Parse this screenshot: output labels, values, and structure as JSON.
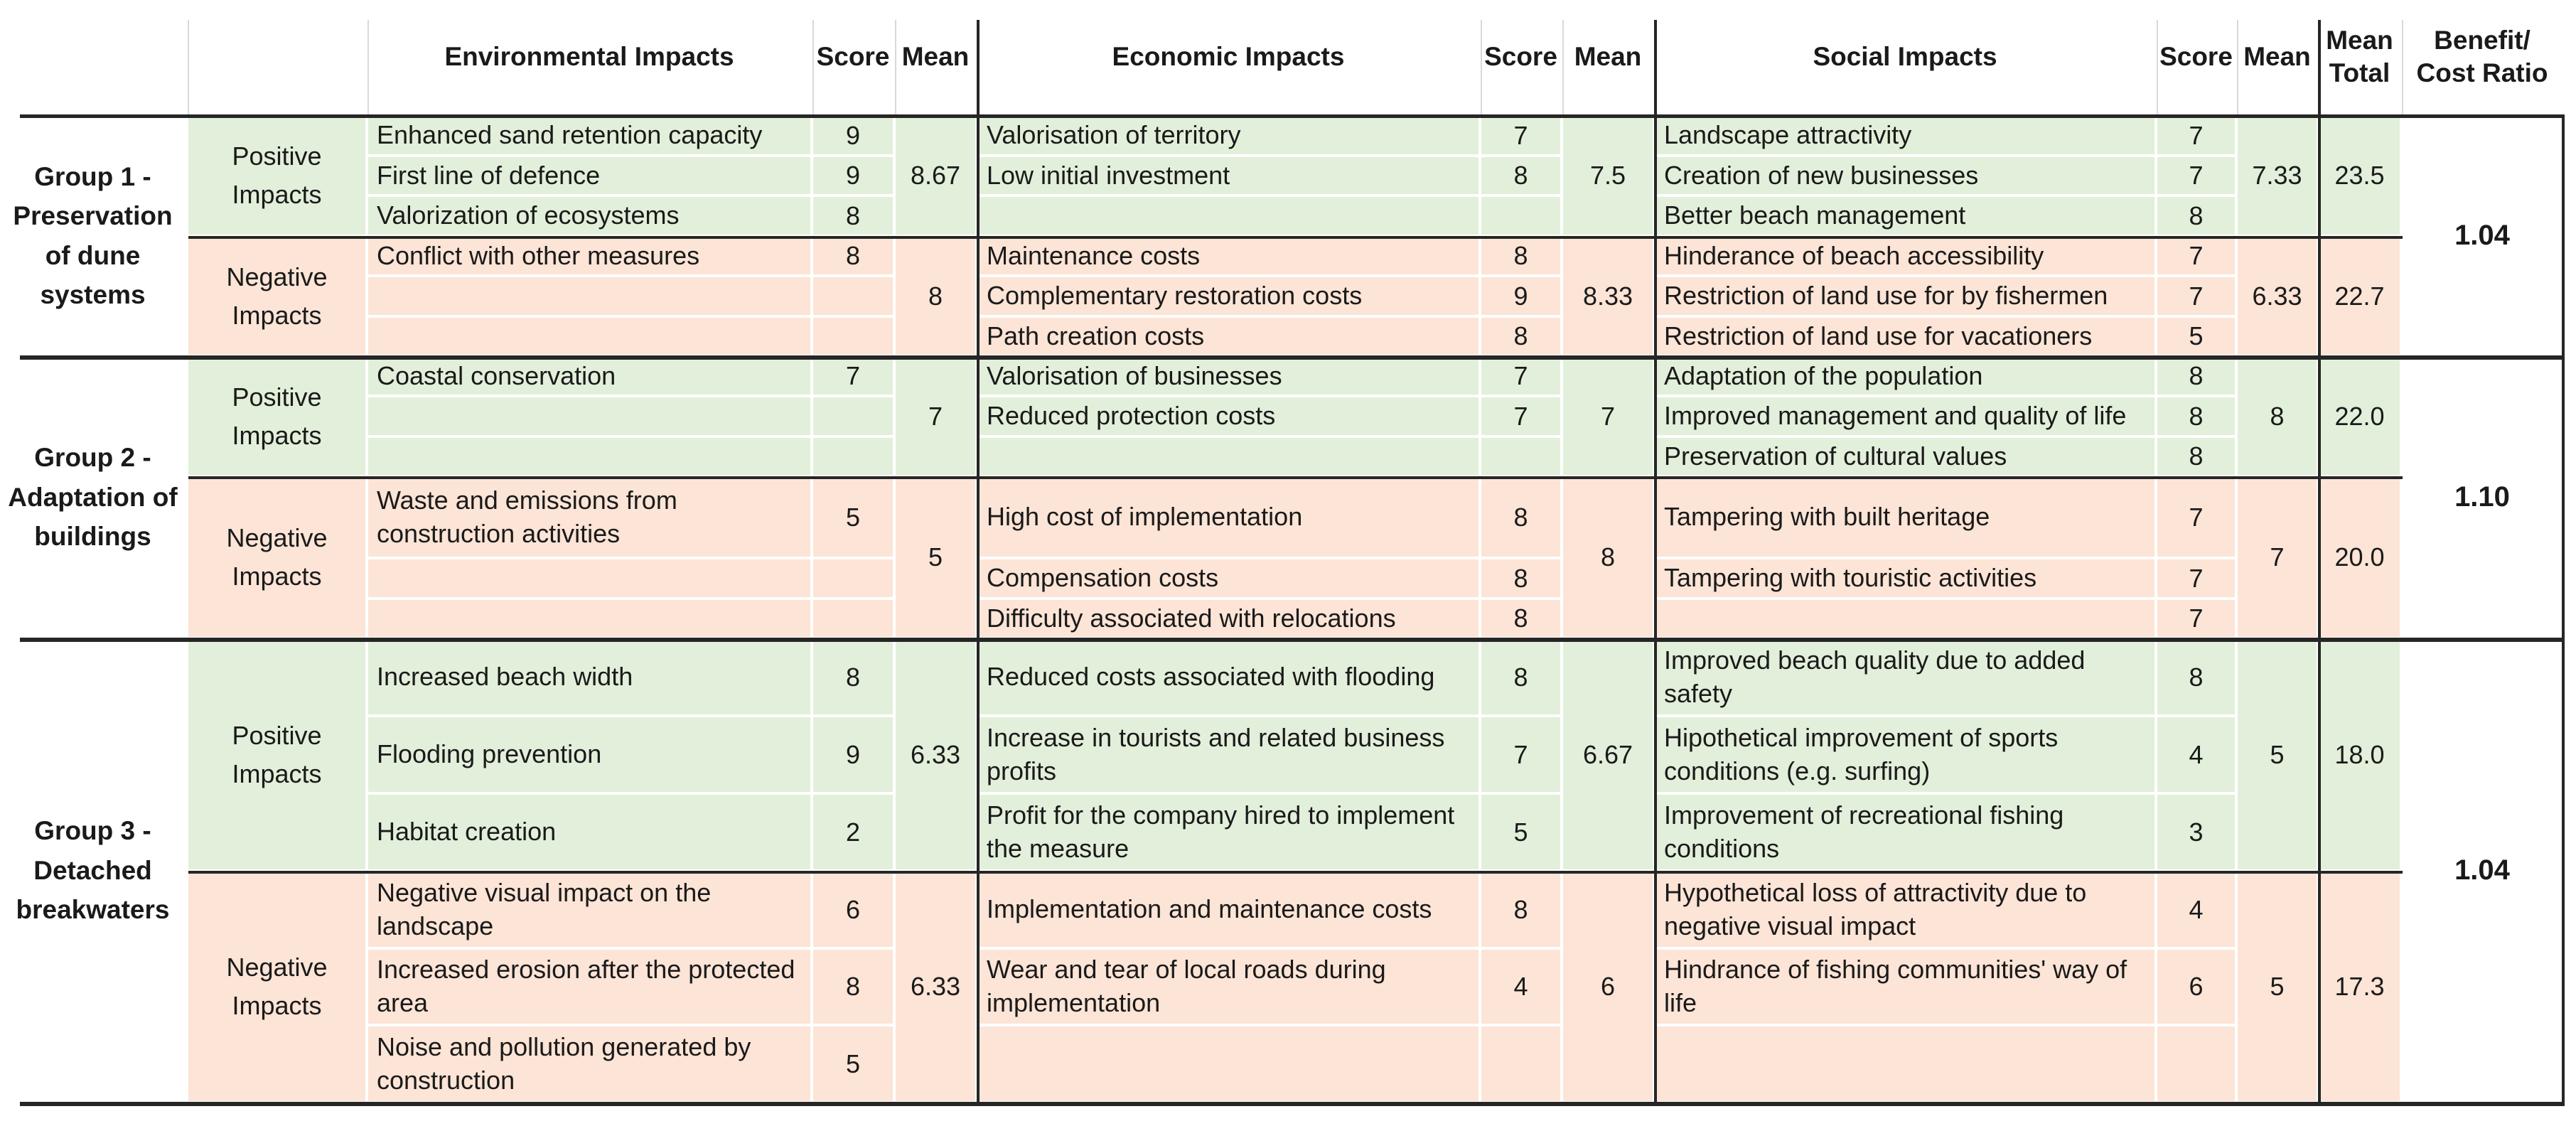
{
  "colors": {
    "positive_fill": "#e2efda",
    "negative_fill": "#fce4d6",
    "grid_dark": "#262626",
    "grid_light": "#d9d9d9"
  },
  "header": {
    "environmental": "Environmental Impacts",
    "score": "Score",
    "mean": "Mean",
    "economic": "Economic Impacts",
    "social": "Social Impacts",
    "mean_total": "Mean\nTotal",
    "benefit_cost": "Benefit/\nCost Ratio"
  },
  "groups": [
    {
      "label": "Group 1 - Preservation of dune systems",
      "ratio": "1.04",
      "positive": {
        "label": "Positive Impacts",
        "env": {
          "items": [
            {
              "label": "Enhanced sand retention capacity",
              "score": "9"
            },
            {
              "label": "First line of defence",
              "score": "9"
            },
            {
              "label": "Valorization of ecosystems",
              "score": "8"
            }
          ],
          "mean": "8.67"
        },
        "econ": {
          "items": [
            {
              "label": "Valorisation of territory",
              "score": "7"
            },
            {
              "label": "Low initial investment",
              "score": "8"
            },
            {
              "label": "",
              "score": ""
            }
          ],
          "mean": "7.5"
        },
        "social": {
          "items": [
            {
              "label": "Landscape attractivity",
              "score": "7"
            },
            {
              "label": "Creation of new businesses",
              "score": "7"
            },
            {
              "label": "Better beach management",
              "score": "8"
            }
          ],
          "mean": "7.33"
        },
        "mean_total": "23.5"
      },
      "negative": {
        "label": "Negative Impacts",
        "env": {
          "items": [
            {
              "label": "Conflict with other measures",
              "score": "8"
            },
            {
              "label": "",
              "score": ""
            },
            {
              "label": "",
              "score": ""
            }
          ],
          "mean": "8"
        },
        "econ": {
          "items": [
            {
              "label": "Maintenance costs",
              "score": "8"
            },
            {
              "label": "Complementary restoration costs",
              "score": "9"
            },
            {
              "label": "Path creation costs",
              "score": "8"
            }
          ],
          "mean": "8.33"
        },
        "social": {
          "items": [
            {
              "label": "Hinderance of beach accessibility",
              "score": "7"
            },
            {
              "label": "Restriction of land use for by fishermen",
              "score": "7"
            },
            {
              "label": "Restriction of land use for vacationers",
              "score": "5"
            }
          ],
          "mean": "6.33"
        },
        "mean_total": "22.7"
      }
    },
    {
      "label": "Group 2 - Adaptation of buildings",
      "ratio": "1.10",
      "positive": {
        "label": "Positive Impacts",
        "env": {
          "items": [
            {
              "label": "Coastal conservation",
              "score": "7"
            },
            {
              "label": "",
              "score": ""
            },
            {
              "label": "",
              "score": ""
            }
          ],
          "mean": "7"
        },
        "econ": {
          "items": [
            {
              "label": "Valorisation of businesses",
              "score": "7"
            },
            {
              "label": "Reduced protection costs",
              "score": "7"
            },
            {
              "label": "",
              "score": ""
            }
          ],
          "mean": "7"
        },
        "social": {
          "items": [
            {
              "label": "Adaptation of the population",
              "score": "8"
            },
            {
              "label": "Improved management and quality of life",
              "score": "8"
            },
            {
              "label": "Preservation of cultural values",
              "score": "8"
            }
          ],
          "mean": "8"
        },
        "mean_total": "22.0"
      },
      "negative": {
        "label": "Negative Impacts",
        "env": {
          "items": [
            {
              "label": "Waste and emissions from construction activities",
              "score": "5"
            },
            {
              "label": "",
              "score": ""
            },
            {
              "label": "",
              "score": ""
            }
          ],
          "mean": "5"
        },
        "econ": {
          "items": [
            {
              "label": "High cost of implementation",
              "score": "8"
            },
            {
              "label": "Compensation costs",
              "score": "8"
            },
            {
              "label": "Difficulty associated with relocations",
              "score": "8"
            }
          ],
          "mean": "8"
        },
        "social": {
          "items": [
            {
              "label": "Tampering with built heritage",
              "score": "7"
            },
            {
              "label": "Tampering with touristic activities",
              "score": "7"
            },
            {
              "label": "",
              "score": "7"
            }
          ],
          "mean": "7"
        },
        "mean_total": "20.0"
      }
    },
    {
      "label": "Group 3 - Detached breakwaters",
      "ratio": "1.04",
      "positive": {
        "label": "Positive Impacts",
        "env": {
          "items": [
            {
              "label": "Increased beach width",
              "score": "8"
            },
            {
              "label": "Flooding prevention",
              "score": "9"
            },
            {
              "label": "Habitat creation",
              "score": "2"
            }
          ],
          "mean": "6.33"
        },
        "econ": {
          "items": [
            {
              "label": "Reduced costs associated with flooding",
              "score": "8"
            },
            {
              "label": "Increase in tourists and related business profits",
              "score": "7"
            },
            {
              "label": "Profit for the company hired to implement the measure",
              "score": "5"
            }
          ],
          "mean": "6.67"
        },
        "social": {
          "items": [
            {
              "label": "Improved beach quality due to added safety",
              "score": "8"
            },
            {
              "label": "Hipothetical improvement of sports conditions (e.g. surfing)",
              "score": "4"
            },
            {
              "label": "Improvement of recreational fishing conditions",
              "score": "3"
            }
          ],
          "mean": "5"
        },
        "mean_total": "18.0"
      },
      "negative": {
        "label": "Negative Impacts",
        "env": {
          "items": [
            {
              "label": "Negative visual impact on the landscape",
              "score": "6"
            },
            {
              "label": "Increased erosion after the protected area",
              "score": "8"
            },
            {
              "label": "Noise and pollution generated by construction",
              "score": "5"
            }
          ],
          "mean": "6.33"
        },
        "econ": {
          "items": [
            {
              "label": "Implementation and maintenance costs",
              "score": "8"
            },
            {
              "label": "Wear and tear of local roads during implementation",
              "score": "4"
            },
            {
              "label": "",
              "score": ""
            }
          ],
          "mean": "6"
        },
        "social": {
          "items": [
            {
              "label": "Hypothetical loss of attractivity due to negative visual impact",
              "score": "4"
            },
            {
              "label": "Hindrance of fishing communities' way of life",
              "score": "6"
            },
            {
              "label": "",
              "score": ""
            }
          ],
          "mean": "5"
        },
        "mean_total": "17.3"
      }
    }
  ]
}
